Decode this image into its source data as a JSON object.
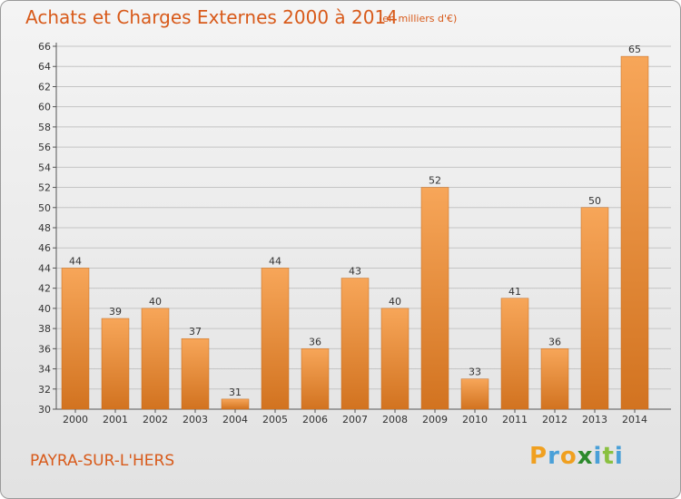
{
  "title": "Achats et Charges Externes 2000 à 2014",
  "subtitle": "(en milliers d'€)",
  "town": "PAYRA-SUR-L'HERS",
  "brand": {
    "text": "Proxiti",
    "letters": [
      {
        "ch": "P",
        "color": "#f0a020"
      },
      {
        "ch": "r",
        "color": "#4aa0d8"
      },
      {
        "ch": "o",
        "color": "#f0a020"
      },
      {
        "ch": "x",
        "color": "#2d8a2d"
      },
      {
        "ch": "i",
        "color": "#4aa0d8"
      },
      {
        "ch": "t",
        "color": "#8ac040"
      },
      {
        "ch": "i",
        "color": "#4aa0d8"
      }
    ]
  },
  "colors": {
    "accent": "#d85a1a",
    "bar_light": "#f7a659",
    "bar_dark": "#d27320",
    "grid": "#c4c4c4"
  },
  "chart_data": {
    "type": "bar",
    "title": "Achats et Charges Externes 2000 à 2014",
    "categories": [
      "2000",
      "2001",
      "2002",
      "2003",
      "2004",
      "2005",
      "2006",
      "2007",
      "2008",
      "2009",
      "2010",
      "2011",
      "2012",
      "2013",
      "2014"
    ],
    "values": [
      44,
      39,
      40,
      37,
      31,
      44,
      36,
      43,
      40,
      52,
      33,
      41,
      36,
      50,
      65
    ],
    "ylim": [
      30,
      66
    ],
    "yticks": [
      30,
      32,
      34,
      36,
      38,
      40,
      42,
      44,
      46,
      48,
      50,
      52,
      54,
      56,
      58,
      60,
      62,
      64,
      66
    ],
    "grid": true,
    "data_labels": true
  }
}
